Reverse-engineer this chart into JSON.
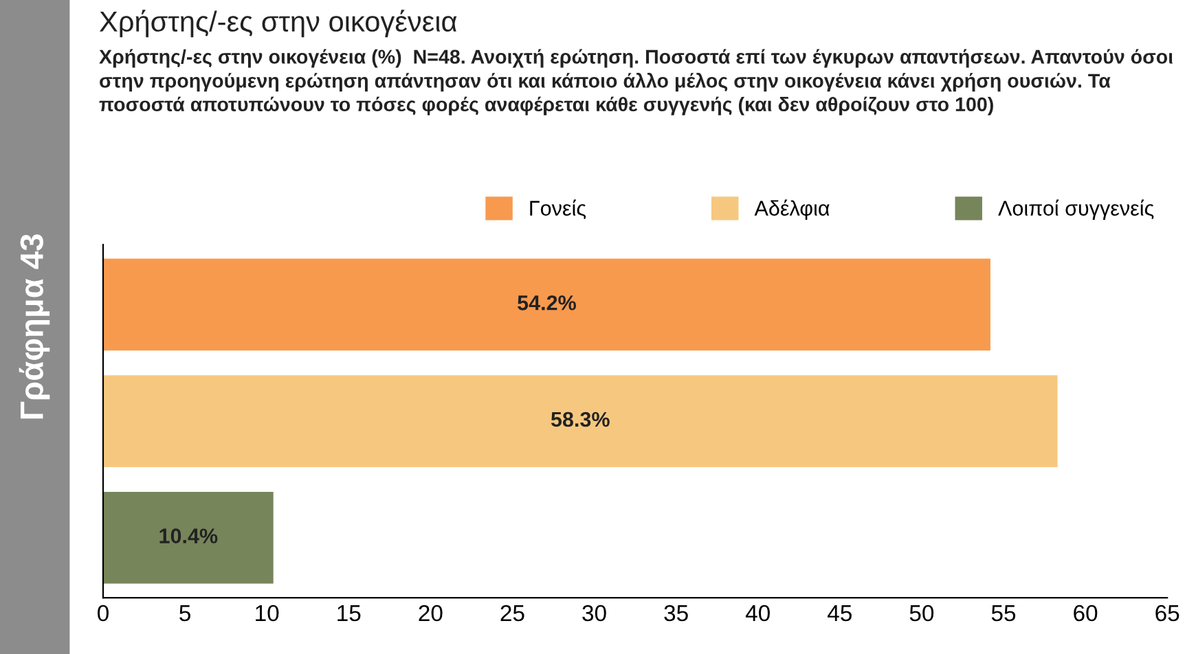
{
  "chart_data": {
    "type": "bar",
    "orientation": "horizontal",
    "title": "Χρήστης/-ες στην οικογένεια",
    "subtitle": "Χρήστης/-ες στην οικογένεια (%)  N=48. Ανοιχτή ερώτηση. Ποσοστά επί των έγκυρων απαντήσεων. Απαντούν όσοι στην προηγούμενη ερώτηση απάντησαν ότι και κάποιο άλλο μέλος στην οικογένεια κάνει χρήση ουσιών. Τα ποσοστά αποτυπώνουν το πόσες φορές αναφέρεται κάθε συγγενής (και δεν αθροίζουν στο 100)",
    "annotations": [
      "Γράφημα 43"
    ],
    "categories": [
      null
    ],
    "series": [
      {
        "name": "Γονείς",
        "color": "#f79a4e",
        "values": [
          54.2
        ],
        "value_labels": [
          "54.2%"
        ]
      },
      {
        "name": "Αδέλφια",
        "color": "#f6c87f",
        "values": [
          58.3
        ],
        "value_labels": [
          "58.3%"
        ]
      },
      {
        "name": "Λοιποί συγγενείς",
        "color": "#76855a",
        "values": [
          10.4
        ],
        "value_labels": [
          "10.4%"
        ]
      }
    ],
    "xlim": [
      0,
      65
    ],
    "xticks": [
      0,
      5,
      10,
      15,
      20,
      25,
      30,
      35,
      40,
      45,
      50,
      55,
      60,
      65
    ],
    "grid": false,
    "legend": "top right"
  }
}
